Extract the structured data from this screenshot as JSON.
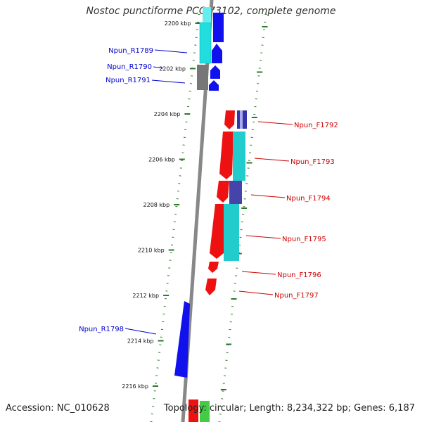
{
  "header": {
    "title": "Nostoc punctiforme PCC 73102, complete genome"
  },
  "footer": {
    "accession": "Accession: NC_010628",
    "summary": "Topology: circular; Length: 8,234,322 bp; Genes: 6,187"
  },
  "colors": {
    "axis": "#888888",
    "tick": "#2a7a2a",
    "reverse_label": "#0000cc",
    "forward_label": "#cc0000",
    "red": "#ee1111",
    "cyan": "#22cccc",
    "blue": "#1111ee",
    "gray": "#777777",
    "navy": "#4444aa",
    "green": "#44cc44"
  },
  "ruler": {
    "labels": [
      "2200 kbp",
      "2202 kbp",
      "2204 kbp",
      "2206 kbp",
      "2208 kbp",
      "2210 kbp",
      "2212 kbp",
      "2214 kbp",
      "2216 kbp"
    ]
  },
  "genes": {
    "reverse_labels": [
      "Npun_R1789",
      "Npun_R1790",
      "Npun_R1791",
      "Npun_R1798"
    ],
    "forward_labels": [
      "Npun_F1792",
      "Npun_F1793",
      "Npun_F1794",
      "Npun_F1795",
      "Npun_F1796",
      "Npun_F1797"
    ]
  }
}
